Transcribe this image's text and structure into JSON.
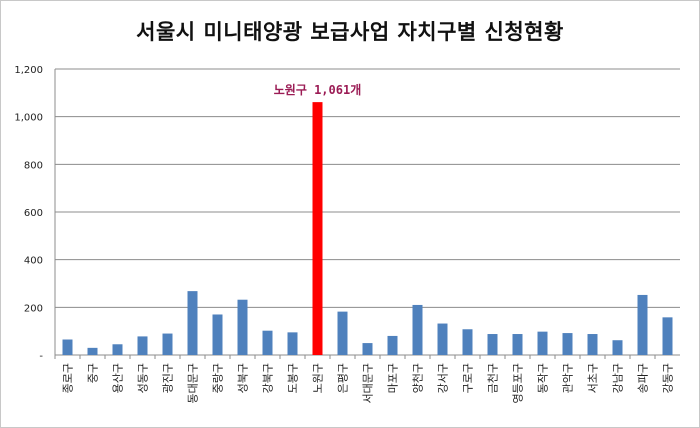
{
  "chart_data": {
    "type": "bar",
    "title": "서울시 미니태양광 보급사업 자치구별 신청현황",
    "xlabel": "",
    "ylabel": "",
    "ylim": [
      0,
      1200
    ],
    "yticks": [
      "-",
      "200",
      "400",
      "600",
      "800",
      "1,000",
      "1,200"
    ],
    "grid": true,
    "legend": "none",
    "categories": [
      "종로구",
      "중구",
      "용산구",
      "성동구",
      "광진구",
      "동대문구",
      "중랑구",
      "성북구",
      "강북구",
      "도봉구",
      "노원구",
      "은평구",
      "서대문구",
      "마포구",
      "양천구",
      "강서구",
      "구로구",
      "금천구",
      "영등포구",
      "동작구",
      "관악구",
      "서초구",
      "강남구",
      "송파구",
      "강동구"
    ],
    "values": [
      65,
      30,
      45,
      78,
      90,
      268,
      170,
      232,
      102,
      95,
      1061,
      182,
      50,
      80,
      210,
      132,
      108,
      88,
      88,
      98,
      92,
      88,
      62,
      252,
      158
    ],
    "colors": {
      "bar": "#4f81bd",
      "highlight": "#ff0000"
    },
    "highlight_index": 10,
    "annotation": "노원구 1,061개"
  }
}
